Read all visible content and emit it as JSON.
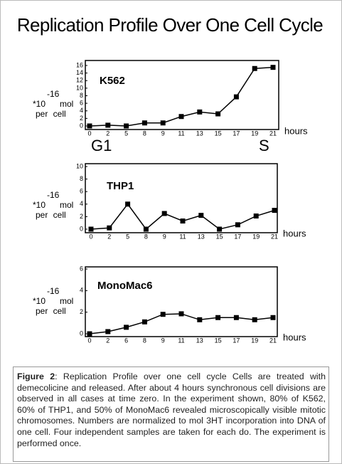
{
  "title": "Replication Profile Over One Cell Cycle",
  "caption_label": "Figure 2",
  "caption_text": ": Replication Profile over one cell cycle Cells are treated with demecolicine and released. After about 4 hours synchronous cell divisions are observed in all cases at time zero. In the experiment shown, 80% of K562, 60% of THP1, and 50% of MonoMac6 revealed microscopically visible mitotic chromosomes. Numbers are normalized to mol 3HT incorporation into DNA of one cell. Four independent samples are taken for each do. The experiment is performed once.",
  "chart_data": [
    {
      "type": "line",
      "title": "K562",
      "color": "#000000",
      "ylabel": {
        "exponent": "-16",
        "base": "*10",
        "unit": "mol",
        "line2": "per cell"
      },
      "xlabel": "hours",
      "annotations": [
        "G1",
        "S"
      ],
      "categories": [
        "0",
        "2",
        "5",
        "8",
        "9",
        "11",
        "13",
        "15",
        "17",
        "19",
        "21"
      ],
      "values": [
        0,
        0.2,
        0,
        0.8,
        0.8,
        2.5,
        3.7,
        3.2,
        7.7,
        15.2,
        15.5
      ],
      "ylim": [
        0,
        16
      ],
      "yticks": [
        0,
        2,
        4,
        6,
        8,
        10,
        12,
        14,
        16
      ]
    },
    {
      "type": "line",
      "title": "THP1",
      "color": "#000000",
      "ylabel": {
        "exponent": "-16",
        "base": "*10",
        "unit": "mol",
        "line2": "per cell"
      },
      "xlabel": "hours",
      "categories": [
        "0",
        "2",
        "5",
        "8",
        "9",
        "11",
        "13",
        "15",
        "17",
        "19",
        "21"
      ],
      "values": [
        0,
        0.2,
        4,
        0,
        2.5,
        1.3,
        2.2,
        0,
        0.7,
        2.1,
        3
      ],
      "ylim": [
        0,
        10
      ],
      "yticks": [
        0,
        2,
        4,
        6,
        8,
        10
      ]
    },
    {
      "type": "line",
      "title": "MonoMac6",
      "color": "#000000",
      "ylabel": {
        "exponent": "-16",
        "base": "*10",
        "unit": "mol",
        "line2": "per cell"
      },
      "xlabel": "hours",
      "categories": [
        "0",
        "2",
        "6",
        "8",
        "9",
        "11",
        "13",
        "15",
        "17",
        "19",
        "21"
      ],
      "values": [
        0,
        0.2,
        0.6,
        1.1,
        1.8,
        1.85,
        1.3,
        1.5,
        1.5,
        1.3,
        1.5
      ],
      "ylim": [
        0,
        6
      ],
      "yticks": [
        0,
        2,
        4,
        6
      ]
    }
  ]
}
